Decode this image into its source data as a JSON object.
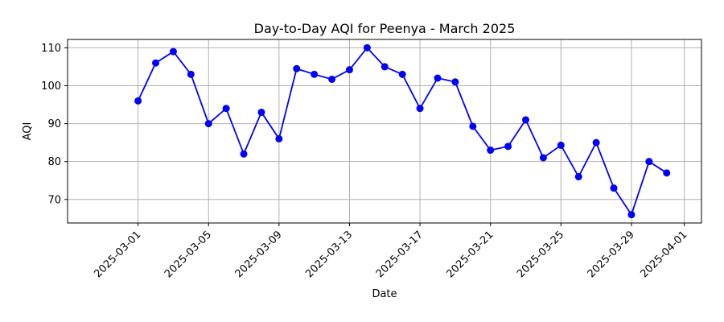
{
  "chart_data": {
    "type": "line",
    "title": "Day-to-Day AQI for Peenya - March 2025",
    "xlabel": "Date",
    "ylabel": "AQI",
    "x": [
      "2025-03-01",
      "2025-03-02",
      "2025-03-03",
      "2025-03-04",
      "2025-03-05",
      "2025-03-06",
      "2025-03-07",
      "2025-03-08",
      "2025-03-09",
      "2025-03-10",
      "2025-03-11",
      "2025-03-12",
      "2025-03-13",
      "2025-03-14",
      "2025-03-15",
      "2025-03-16",
      "2025-03-17",
      "2025-03-18",
      "2025-03-19",
      "2025-03-20",
      "2025-03-21",
      "2025-03-22",
      "2025-03-23",
      "2025-03-24",
      "2025-03-25",
      "2025-03-26",
      "2025-03-27",
      "2025-03-28",
      "2025-03-29",
      "2025-03-30",
      "2025-03-31"
    ],
    "series": [
      {
        "values": [
          96,
          106,
          109,
          103,
          90,
          94,
          82,
          93,
          86,
          104.5,
          103,
          101.7,
          104.2,
          110,
          105,
          103,
          94,
          102,
          101,
          89.3,
          83,
          84,
          91,
          81,
          84.3,
          76,
          85,
          73,
          66,
          80,
          77
        ],
        "color": "#0000ff"
      }
    ],
    "x_ticks": [
      "2025-03-01",
      "2025-03-05",
      "2025-03-09",
      "2025-03-13",
      "2025-03-17",
      "2025-03-21",
      "2025-03-25",
      "2025-03-29",
      "2025-04-01"
    ],
    "y_ticks": [
      70,
      80,
      90,
      100,
      110
    ],
    "xlim": [
      "2025-02-25",
      "2025-04-01"
    ],
    "ylim": [
      63.8,
      112.2
    ],
    "grid": true
  }
}
